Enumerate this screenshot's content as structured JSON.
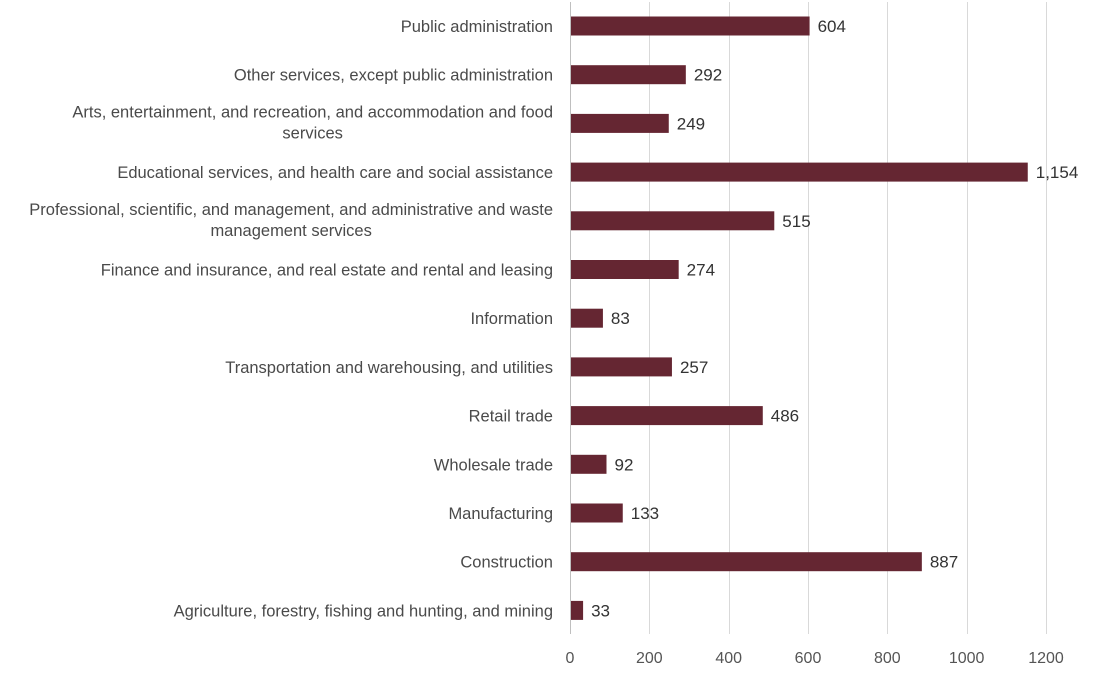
{
  "chart_data": {
    "type": "bar",
    "orientation": "horizontal",
    "categories": [
      "Public administration",
      "Other services, except public administration",
      "Arts, entertainment, and recreation, and accommodation and food services",
      "Educational services, and health care and social assistance",
      "Professional, scientific, and management, and administrative and waste management services",
      "Finance and insurance, and real estate and rental and leasing",
      "Information",
      "Transportation and warehousing, and utilities",
      "Retail trade",
      "Wholesale trade",
      "Manufacturing",
      "Construction",
      "Agriculture, forestry, fishing and hunting, and mining"
    ],
    "category_label_lines": [
      [
        "Public administration"
      ],
      [
        "Other services, except public administration"
      ],
      [
        "Arts, entertainment, and recreation, and accommodation and food",
        "services"
      ],
      [
        "Educational services, and health care and social assistance"
      ],
      [
        "Professional, scientific, and management, and administrative and waste",
        "management services"
      ],
      [
        "Finance and insurance, and real estate and rental and leasing"
      ],
      [
        "Information"
      ],
      [
        "Transportation and warehousing, and utilities"
      ],
      [
        "Retail trade"
      ],
      [
        "Wholesale trade"
      ],
      [
        "Manufacturing"
      ],
      [
        "Construction"
      ],
      [
        "Agriculture, forestry, fishing and hunting, and mining"
      ]
    ],
    "values": [
      604,
      292,
      249,
      1154,
      515,
      274,
      83,
      257,
      486,
      92,
      133,
      887,
      33
    ],
    "value_labels": [
      "604",
      "292",
      "249",
      "1,154",
      "515",
      "274",
      "83",
      "257",
      "486",
      "92",
      "133",
      "887",
      "33"
    ],
    "xlim": [
      0,
      1200
    ],
    "xticks": [
      0,
      200,
      400,
      600,
      800,
      1000,
      1200
    ],
    "xtick_labels": [
      "0",
      "200",
      "400",
      "600",
      "800",
      "1000",
      "1200"
    ],
    "title": "",
    "xlabel": "",
    "ylabel": "",
    "grid": "vertical",
    "legend": "none",
    "bar_color": "#652632"
  }
}
